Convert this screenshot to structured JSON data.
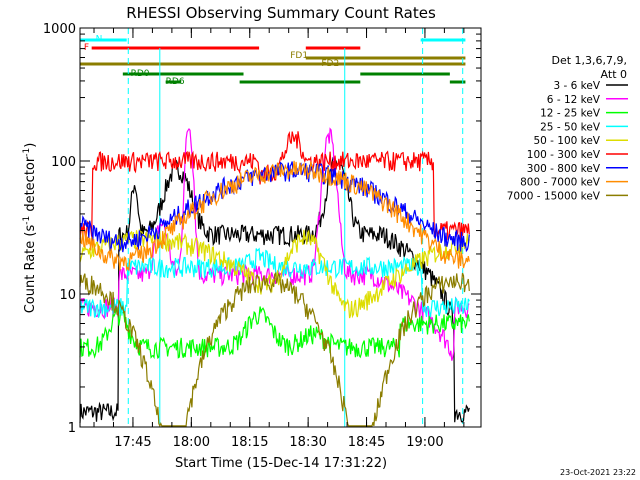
{
  "chart_data": {
    "type": "line",
    "title": "RHESSI Observing Summary Count Rates",
    "xlabel": "Start Time (15-Dec-14 17:31:22)",
    "ylabel_main": "Count Rate (s",
    "ylabel_sup1": "-1",
    "ylabel_mid": " detector",
    "ylabel_sup2": "-1",
    "ylabel_end": ")",
    "yscale": "log",
    "ylim": [
      1,
      1000
    ],
    "xlim_min": [
      0,
      103
    ],
    "y_ticks": [
      {
        "value": 1,
        "label": "1"
      },
      {
        "value": 10,
        "label": "10"
      },
      {
        "value": 100,
        "label": "100"
      },
      {
        "value": 1000,
        "label": "1000"
      }
    ],
    "x_ticks": [
      {
        "min": 13.6,
        "label": "17:45"
      },
      {
        "min": 28.6,
        "label": "18:00"
      },
      {
        "min": 43.6,
        "label": "18:15"
      },
      {
        "min": 58.6,
        "label": "18:30"
      },
      {
        "min": 73.6,
        "label": "18:45"
      },
      {
        "min": 88.6,
        "label": "19:00"
      }
    ],
    "legend_header": [
      "Det 1,3,6,7,9,",
      "Att 0"
    ],
    "series": [
      {
        "name": "3 - 6 keV",
        "color": "#000000"
      },
      {
        "name": "6 - 12 keV",
        "color": "#ff00ff"
      },
      {
        "name": "12 - 25 keV",
        "color": "#00ff00"
      },
      {
        "name": "25 - 50 keV",
        "color": "#00ffff"
      },
      {
        "name": "50 - 100 keV",
        "color": "#dddd00"
      },
      {
        "name": "100 - 300 keV",
        "color": "#ff0000"
      },
      {
        "name": "300 - 800 keV",
        "color": "#0000ff"
      },
      {
        "name": "800 - 7000 keV",
        "color": "#ff8c00"
      },
      {
        "name": "7000 - 15000 keV",
        "color": "#8b7d00"
      }
    ],
    "flags": [
      {
        "label": "N",
        "color": "#00ffff",
        "segments": [
          [
            0,
            12
          ],
          [
            87.5,
            99
          ]
        ]
      },
      {
        "label": "F",
        "color": "#ff0000",
        "segments": [
          [
            3,
            46
          ],
          [
            58,
            72
          ]
        ]
      },
      {
        "label": "FD1",
        "color": "#8b7d00",
        "segments": [
          [
            58,
            99
          ]
        ]
      },
      {
        "label": "FD2",
        "color": "#8b7d00",
        "segments": [
          [
            0,
            99
          ]
        ]
      },
      {
        "label": "RD0",
        "color": "#008000",
        "segments": [
          [
            11,
            42
          ],
          [
            72,
            95
          ]
        ]
      },
      {
        "label": "RD6",
        "color": "#008000",
        "segments": [
          [
            22,
            26
          ],
          [
            41,
            72
          ],
          [
            95,
            99
          ]
        ]
      }
    ],
    "saa_lines_min": [
      12.4,
      88.0,
      98.3
    ],
    "night_lines_min": [
      20.5,
      68.0
    ],
    "approx_peak_counts": {
      "6 - 12 keV": 200,
      "3 - 6 keV": 100
    },
    "timestamp": "23-Oct-2021 23:22"
  }
}
